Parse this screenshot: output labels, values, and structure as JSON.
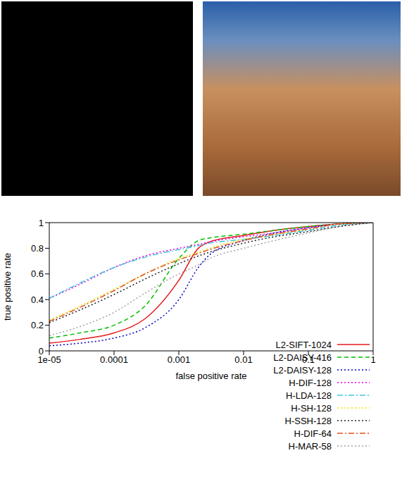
{
  "chart_data": {
    "type": "line",
    "xlabel": "false positive rate",
    "ylabel": "true positive rate",
    "log": "x",
    "grid": false,
    "legend": "lower right",
    "x": [
      1e-05,
      3e-05,
      0.0001,
      0.0003,
      0.001,
      0.002,
      0.003,
      0.01,
      0.03,
      0.1,
      0.3,
      1
    ],
    "xlim": [
      1e-05,
      1
    ],
    "xticks": [
      {
        "value": 1e-05,
        "label": "1e-05"
      },
      0.0001,
      0.001,
      0.01,
      0.1,
      1
    ],
    "ylim": [
      0,
      1
    ],
    "yticks": [
      0,
      0.2,
      0.4,
      0.6,
      0.8,
      1
    ],
    "series": [
      {
        "name": "L2-SIFT-1024",
        "color": "#e41a1c",
        "line_style": "solid",
        "values": [
          0.06,
          0.09,
          0.14,
          0.25,
          0.55,
          0.8,
          0.85,
          0.9,
          0.94,
          0.97,
          0.99,
          1
        ]
      },
      {
        "name": "L2-DAISY-416",
        "color": "#00c000",
        "line_style": "dashed",
        "values": [
          0.1,
          0.14,
          0.2,
          0.35,
          0.72,
          0.86,
          0.88,
          0.91,
          0.94,
          0.97,
          0.99,
          1
        ]
      },
      {
        "name": "L2-DAISY-128",
        "color": "#0000c8",
        "line_style": "dotted",
        "values": [
          0.04,
          0.06,
          0.1,
          0.18,
          0.4,
          0.65,
          0.75,
          0.86,
          0.92,
          0.96,
          0.99,
          1
        ]
      },
      {
        "name": "H-DIF-128",
        "color": "#e000e0",
        "line_style": "dotted",
        "values": [
          0.41,
          0.52,
          0.65,
          0.74,
          0.8,
          0.83,
          0.85,
          0.89,
          0.92,
          0.96,
          0.99,
          1
        ]
      },
      {
        "name": "H-LDA-128",
        "color": "#40c8e0",
        "line_style": "dashdot",
        "values": [
          0.41,
          0.53,
          0.65,
          0.73,
          0.79,
          0.82,
          0.84,
          0.87,
          0.9,
          0.94,
          0.98,
          1
        ]
      },
      {
        "name": "H-SH-128",
        "color": "#e6e600",
        "line_style": "dotted",
        "values": [
          0.24,
          0.35,
          0.48,
          0.6,
          0.72,
          0.77,
          0.8,
          0.87,
          0.91,
          0.95,
          0.99,
          1
        ]
      },
      {
        "name": "H-SSH-128",
        "color": "#202020",
        "line_style": "dotted",
        "values": [
          0.22,
          0.32,
          0.44,
          0.56,
          0.68,
          0.74,
          0.77,
          0.84,
          0.89,
          0.93,
          0.97,
          1
        ]
      },
      {
        "name": "H-DIF-64",
        "color": "#e05020",
        "line_style": "dashdot",
        "values": [
          0.23,
          0.34,
          0.47,
          0.6,
          0.71,
          0.76,
          0.79,
          0.86,
          0.91,
          0.95,
          0.99,
          1
        ]
      },
      {
        "name": "H-MAR-58",
        "color": "#a0a0a0",
        "line_style": "dotted",
        "values": [
          0.12,
          0.19,
          0.3,
          0.45,
          0.6,
          0.67,
          0.72,
          0.8,
          0.86,
          0.92,
          0.97,
          1
        ]
      }
    ]
  }
}
